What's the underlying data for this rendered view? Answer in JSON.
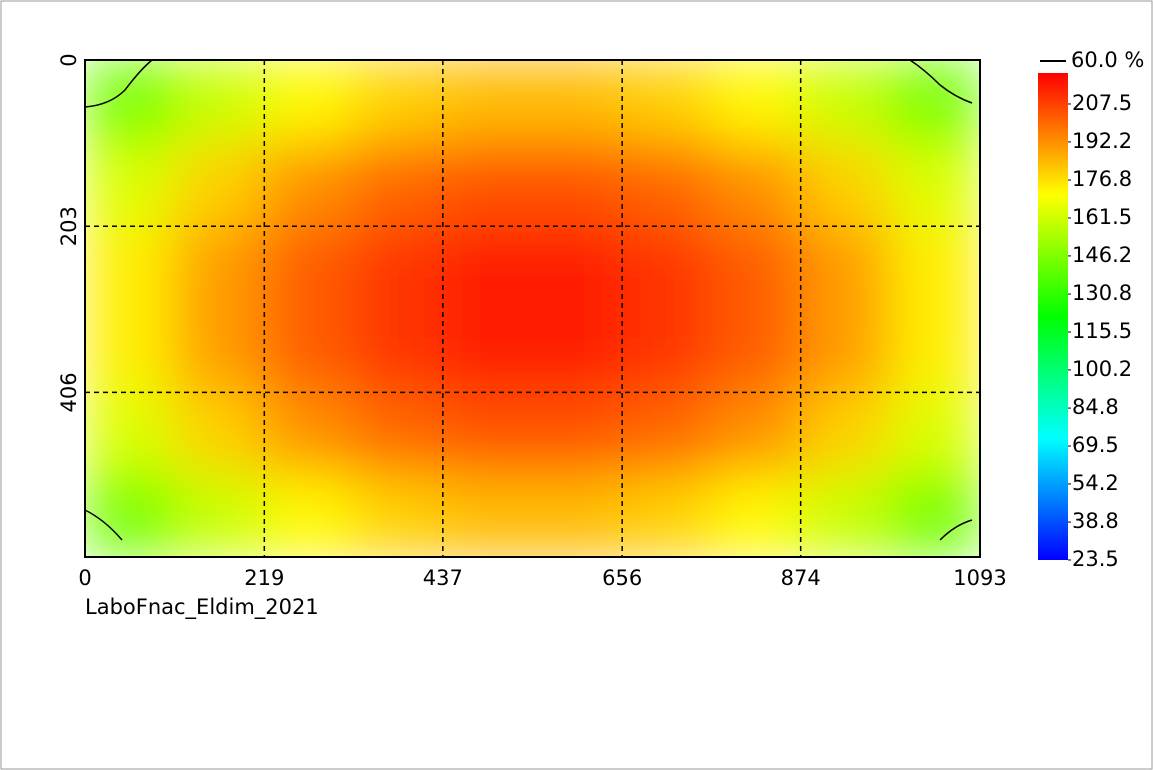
{
  "chart_data": {
    "type": "heatmap",
    "xlabel": "LaboFnac_Eldim_2021",
    "xlim": [
      0,
      1093
    ],
    "xticks": [
      0,
      219,
      437,
      656,
      874,
      1093
    ],
    "ylim": [
      0,
      607
    ],
    "yticks": [
      0,
      203,
      406
    ],
    "grid": true,
    "values": [
      [
        144,
        160,
        172,
        180,
        184,
        184,
        180,
        172,
        160,
        144
      ],
      [
        164,
        180,
        192,
        200,
        204,
        204,
        200,
        192,
        180,
        164
      ],
      [
        174,
        190,
        202,
        210,
        214,
        214,
        210,
        202,
        190,
        174
      ],
      [
        174,
        190,
        202,
        210,
        214,
        214,
        210,
        202,
        190,
        174
      ],
      [
        164,
        180,
        192,
        200,
        204,
        204,
        200,
        192,
        180,
        164
      ],
      [
        144,
        160,
        172,
        180,
        184,
        184,
        180,
        172,
        160,
        144
      ]
    ],
    "colorscale": [
      "#0000ff",
      "#00ffff",
      "#00ff00",
      "#ffff00",
      "#ff0000"
    ],
    "clim": [
      23.5,
      220
    ],
    "cticks": [
      23.5,
      38.8,
      54.2,
      69.5,
      84.8,
      100.2,
      115.5,
      130.8,
      146.2,
      161.5,
      176.8,
      192.2,
      207.5
    ],
    "contour_label": "60.0 %"
  }
}
